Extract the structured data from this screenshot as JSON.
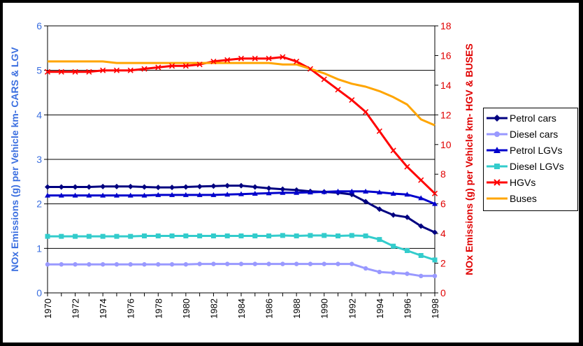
{
  "chart_data": {
    "type": "line",
    "title": "",
    "xlabel": "",
    "ylabel": "NOx Emissions (g) per Vehicle km- CARS & LGV",
    "ylabel_right": "NOx Emissions (g) per Vehicle km- HGV & BUSES",
    "ylim": [
      0,
      6
    ],
    "ylim_right": [
      0,
      18
    ],
    "yticks": [
      "0",
      "1",
      "2",
      "3",
      "4",
      "5",
      "6"
    ],
    "yticks_right": [
      "0",
      "2",
      "4",
      "6",
      "8",
      "10",
      "12",
      "14",
      "16",
      "18"
    ],
    "xticks": [
      "1970",
      "1972",
      "1974",
      "1976",
      "1978",
      "1980",
      "1982",
      "1984",
      "1986",
      "1988",
      "1990",
      "1992",
      "1994",
      "1996",
      "1998"
    ],
    "x": [
      1970,
      1971,
      1972,
      1973,
      1974,
      1975,
      1976,
      1977,
      1978,
      1979,
      1980,
      1981,
      1982,
      1983,
      1984,
      1985,
      1986,
      1987,
      1988,
      1989,
      1990,
      1991,
      1992,
      1993,
      1994,
      1995,
      1996,
      1997,
      1998
    ],
    "grid": "horizontal",
    "legend_position": "right",
    "axis_colors": {
      "left": "#3b6fe0",
      "right": "#e00000"
    },
    "series": [
      {
        "name": "Petrol cars",
        "axis": "left",
        "color": "#000080",
        "marker": "diamond",
        "values": [
          2.38,
          2.38,
          2.38,
          2.38,
          2.39,
          2.39,
          2.39,
          2.38,
          2.37,
          2.37,
          2.38,
          2.39,
          2.4,
          2.41,
          2.41,
          2.38,
          2.35,
          2.33,
          2.31,
          2.28,
          2.27,
          2.25,
          2.21,
          2.05,
          1.88,
          1.75,
          1.7,
          1.5,
          1.36
        ]
      },
      {
        "name": "Diesel cars",
        "axis": "left",
        "color": "#9999ff",
        "marker": "circle",
        "values": [
          0.64,
          0.64,
          0.64,
          0.64,
          0.64,
          0.64,
          0.64,
          0.64,
          0.64,
          0.64,
          0.64,
          0.65,
          0.65,
          0.65,
          0.65,
          0.65,
          0.65,
          0.65,
          0.65,
          0.65,
          0.65,
          0.65,
          0.65,
          0.55,
          0.47,
          0.45,
          0.43,
          0.38,
          0.38
        ]
      },
      {
        "name": "Petrol LGVs",
        "axis": "left",
        "color": "#0000cc",
        "marker": "triangle",
        "values": [
          2.19,
          2.19,
          2.19,
          2.19,
          2.19,
          2.19,
          2.19,
          2.19,
          2.2,
          2.2,
          2.2,
          2.2,
          2.2,
          2.21,
          2.22,
          2.23,
          2.24,
          2.25,
          2.25,
          2.26,
          2.27,
          2.28,
          2.28,
          2.28,
          2.26,
          2.23,
          2.21,
          2.13,
          2.0
        ]
      },
      {
        "name": "Diesel LGVs",
        "axis": "left",
        "color": "#33cccc",
        "marker": "square",
        "values": [
          1.27,
          1.27,
          1.27,
          1.27,
          1.27,
          1.27,
          1.27,
          1.28,
          1.28,
          1.28,
          1.28,
          1.28,
          1.28,
          1.28,
          1.28,
          1.28,
          1.28,
          1.29,
          1.28,
          1.29,
          1.29,
          1.28,
          1.29,
          1.28,
          1.2,
          1.05,
          0.95,
          0.84,
          0.74
        ]
      },
      {
        "name": "HGVs",
        "axis": "right",
        "color": "#ff0000",
        "marker": "x",
        "values": [
          14.9,
          14.9,
          14.9,
          14.9,
          15.0,
          15.0,
          15.0,
          15.1,
          15.2,
          15.3,
          15.3,
          15.4,
          15.6,
          15.7,
          15.8,
          15.8,
          15.8,
          15.9,
          15.6,
          15.1,
          14.4,
          13.7,
          13.0,
          12.2,
          10.9,
          9.6,
          8.5,
          7.6,
          6.7
        ]
      },
      {
        "name": "Buses",
        "axis": "right",
        "color": "#ffa500",
        "marker": "none",
        "values": [
          15.6,
          15.6,
          15.6,
          15.6,
          15.6,
          15.5,
          15.5,
          15.5,
          15.5,
          15.5,
          15.5,
          15.5,
          15.5,
          15.5,
          15.5,
          15.5,
          15.5,
          15.4,
          15.4,
          15.1,
          14.8,
          14.4,
          14.1,
          13.9,
          13.6,
          13.2,
          12.7,
          11.7,
          11.3
        ]
      }
    ]
  }
}
